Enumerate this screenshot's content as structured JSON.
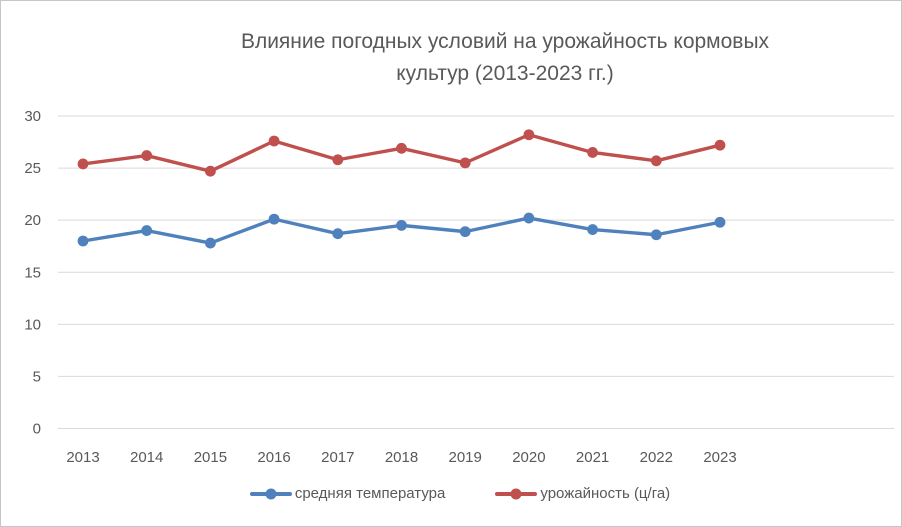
{
  "frame": {
    "background": "#ffffff",
    "border_color": "#c6c6c6"
  },
  "chart_data": {
    "type": "line",
    "title": "Влияние погодных условий на урожайность кормовых культур (2013-2023 гг.)",
    "title_lines": [
      "Влияние погодных условий на урожайность кормовых",
      "культур (2013-2023 гг.)"
    ],
    "categories": [
      "2013",
      "2014",
      "2015",
      "2016",
      "2017",
      "2018",
      "2019",
      "2020",
      "2021",
      "2022",
      "2023"
    ],
    "series": [
      {
        "name": "средняя температура",
        "color": "#4F81BD",
        "marker": "circle",
        "values": [
          18.0,
          19.0,
          17.8,
          20.1,
          18.7,
          19.5,
          18.9,
          20.2,
          19.1,
          18.6,
          19.8
        ]
      },
      {
        "name": "урожайность (ц/га)",
        "color": "#C0504D",
        "marker": "circle",
        "values": [
          25.4,
          26.2,
          24.7,
          27.6,
          25.8,
          26.9,
          25.5,
          28.2,
          26.5,
          25.7,
          27.2
        ]
      }
    ],
    "xlabel": "",
    "ylabel": "",
    "ylim": [
      0,
      30
    ],
    "yticks": [
      0,
      5,
      10,
      15,
      20,
      25,
      30
    ],
    "grid": true,
    "gridline_color": "#D9D9D9",
    "text_color": "#595959",
    "legend_position": "bottom"
  }
}
